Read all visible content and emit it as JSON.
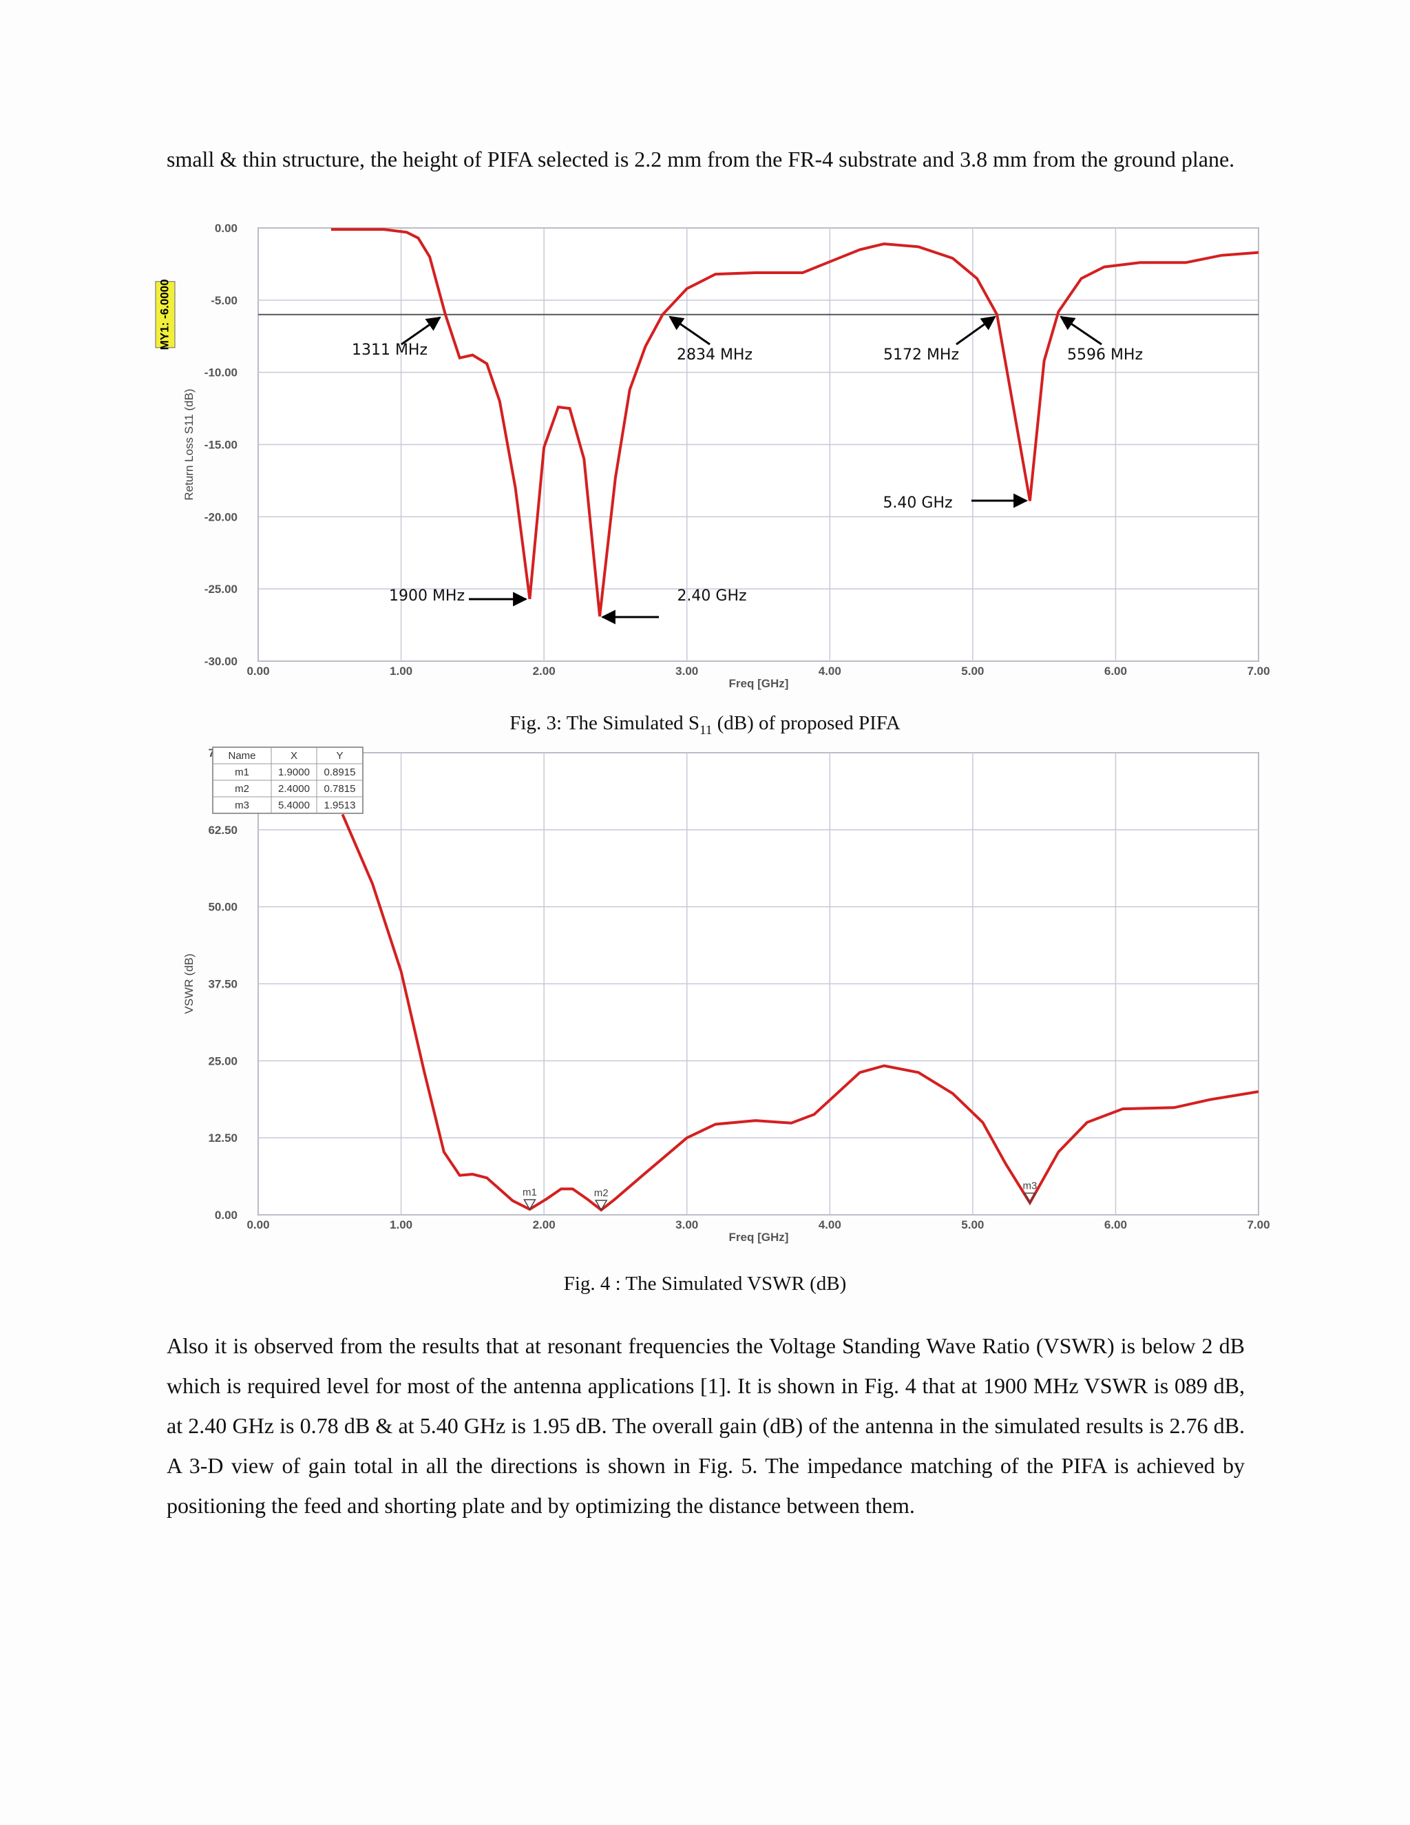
{
  "paragraphs": [
    "small & thin structure, the height of PIFA selected is 2.2 mm from the FR-4 substrate and 3.8 mm from the ground plane.",
    "Also it is observed from the results that at resonant frequencies the Voltage Standing Wave Ratio (VSWR) is below 2 dB which is required level for most of the antenna applications [1]. It is shown in Fig. 4 that at 1900 MHz VSWR is 089 dB, at 2.40 GHz is 0.78 dB & at 5.40 GHz is 1.95 dB. The overall gain (dB) of the antenna in the simulated results is 2.76 dB. A 3-D view of gain total in all the directions is shown in Fig. 5. The impedance matching of the PIFA is achieved by positioning the feed and shorting plate and by optimizing the distance between them."
  ],
  "chart_data": [
    {
      "type": "line",
      "caption": {
        "before": "Fig. 3: The Simulated S",
        "subscript": "11",
        "after": " (dB) of proposed PIFA"
      },
      "x_label": "Freq [GHz]",
      "y_label": "Return Loss S11 (dB)",
      "color": "#d42020",
      "grid": true,
      "x": [
        0.51,
        0.88,
        1.04,
        1.12,
        1.2,
        1.31,
        1.41,
        1.5,
        1.6,
        1.69,
        1.8,
        1.9,
        2.0,
        2.1,
        2.18,
        2.28,
        2.39,
        2.5,
        2.6,
        2.71,
        2.83,
        3.0,
        3.2,
        3.48,
        3.81,
        4.01,
        4.21,
        4.38,
        4.62,
        4.86,
        5.03,
        5.17,
        5.27,
        5.4,
        5.5,
        5.6,
        5.76,
        5.92,
        6.17,
        6.49,
        6.74,
        7.0
      ],
      "values": [
        -0.1,
        -0.1,
        -0.3,
        -0.7,
        -2.0,
        -6.0,
        -9.0,
        -8.8,
        -9.4,
        -12.0,
        -18.0,
        -25.7,
        -15.2,
        -12.4,
        -12.5,
        -16.0,
        -26.9,
        -17.3,
        -11.2,
        -8.2,
        -6.0,
        -4.2,
        -3.2,
        -3.1,
        -3.1,
        -2.3,
        -1.5,
        -1.1,
        -1.3,
        -2.1,
        -3.5,
        -6.0,
        -11.6,
        -18.9,
        -9.2,
        -5.8,
        -3.5,
        -2.7,
        -2.4,
        -2.4,
        -1.9,
        -1.7
      ],
      "xlim": [
        0,
        7
      ],
      "ylim": [
        -30,
        0
      ],
      "xticks": [
        {
          "value": 0,
          "label": "0.00"
        },
        {
          "value": 1,
          "label": "1.00"
        },
        {
          "value": 2,
          "label": "2.00"
        },
        {
          "value": 3,
          "label": "3.00"
        },
        {
          "value": 4,
          "label": "4.00"
        },
        {
          "value": 5,
          "label": "5.00"
        },
        {
          "value": 6,
          "label": "6.00"
        },
        {
          "value": 7,
          "label": "7.00"
        }
      ],
      "yticks": [
        {
          "value": -30,
          "label": "-30.00"
        },
        {
          "value": -25,
          "label": "-25.00"
        },
        {
          "value": -20,
          "label": "-20.00"
        },
        {
          "value": -15,
          "label": "-15.00"
        },
        {
          "value": -10,
          "label": "-10.00"
        },
        {
          "value": -5,
          "label": "-5.00"
        },
        {
          "value": 0,
          "label": "0.00"
        }
      ],
      "reference_line": {
        "value": -6,
        "label": "MY1: -6.0000"
      },
      "annotations": [
        "1311 MHz",
        "2834 MHz",
        "5172 MHz",
        "5596 MHz",
        "5.40 GHz",
        "1900 MHz",
        "2.40 GHz"
      ]
    },
    {
      "type": "line",
      "caption": {
        "before": "Fig. 4 : The Simulated VSWR (dB)",
        "subscript": "",
        "after": ""
      },
      "x_label": "Freq [GHz]",
      "y_label": "VSWR (dB)",
      "color": "#d42020",
      "grid": true,
      "x": [
        0.59,
        0.8,
        1.0,
        1.16,
        1.3,
        1.41,
        1.5,
        1.6,
        1.78,
        1.9,
        2.02,
        2.12,
        2.2,
        2.3,
        2.4,
        2.5,
        2.67,
        3.0,
        3.2,
        3.48,
        3.73,
        3.89,
        4.05,
        4.21,
        4.38,
        4.62,
        4.86,
        5.07,
        5.23,
        5.4,
        5.6,
        5.8,
        6.05,
        6.41,
        6.66,
        7.0
      ],
      "values": [
        65,
        53.7,
        39.5,
        23.4,
        10.2,
        6.4,
        6.6,
        6.0,
        2.3,
        0.89,
        2.6,
        4.2,
        4.2,
        2.6,
        0.78,
        2.6,
        6.0,
        12.5,
        14.7,
        15.3,
        14.9,
        16.3,
        19.7,
        23.1,
        24.2,
        23.1,
        19.7,
        15.0,
        8.3,
        1.95,
        10.2,
        15.0,
        17.2,
        17.4,
        18.7,
        20.0
      ],
      "xlim": [
        0,
        7
      ],
      "ylim": [
        0,
        75
      ],
      "xticks": [
        {
          "value": 0,
          "label": "0.00"
        },
        {
          "value": 1,
          "label": "1.00"
        },
        {
          "value": 2,
          "label": "2.00"
        },
        {
          "value": 3,
          "label": "3.00"
        },
        {
          "value": 4,
          "label": "4.00"
        },
        {
          "value": 5,
          "label": "5.00"
        },
        {
          "value": 6,
          "label": "6.00"
        },
        {
          "value": 7,
          "label": "7.00"
        }
      ],
      "yticks": [
        {
          "value": 0,
          "label": "0.00"
        },
        {
          "value": 12.5,
          "label": "12.50"
        },
        {
          "value": 25,
          "label": "25.00"
        },
        {
          "value": 37.5,
          "label": "37.50"
        },
        {
          "value": 50,
          "label": "50.00"
        },
        {
          "value": 62.5,
          "label": "62.50"
        },
        {
          "value": 75,
          "label": "75.00"
        }
      ],
      "marker_table_columns": [
        "Name",
        "X",
        "Y"
      ],
      "markers": [
        {
          "name": "m1",
          "x": 1.9,
          "y": 0.8915,
          "x_label": "1.9000",
          "y_label": "0.8915"
        },
        {
          "name": "m2",
          "x": 2.4,
          "y": 0.7815,
          "x_label": "2.4000",
          "y_label": "0.7815"
        },
        {
          "name": "m3",
          "x": 5.4,
          "y": 1.9513,
          "x_label": "5.4000",
          "y_label": "1.9513"
        }
      ]
    }
  ]
}
